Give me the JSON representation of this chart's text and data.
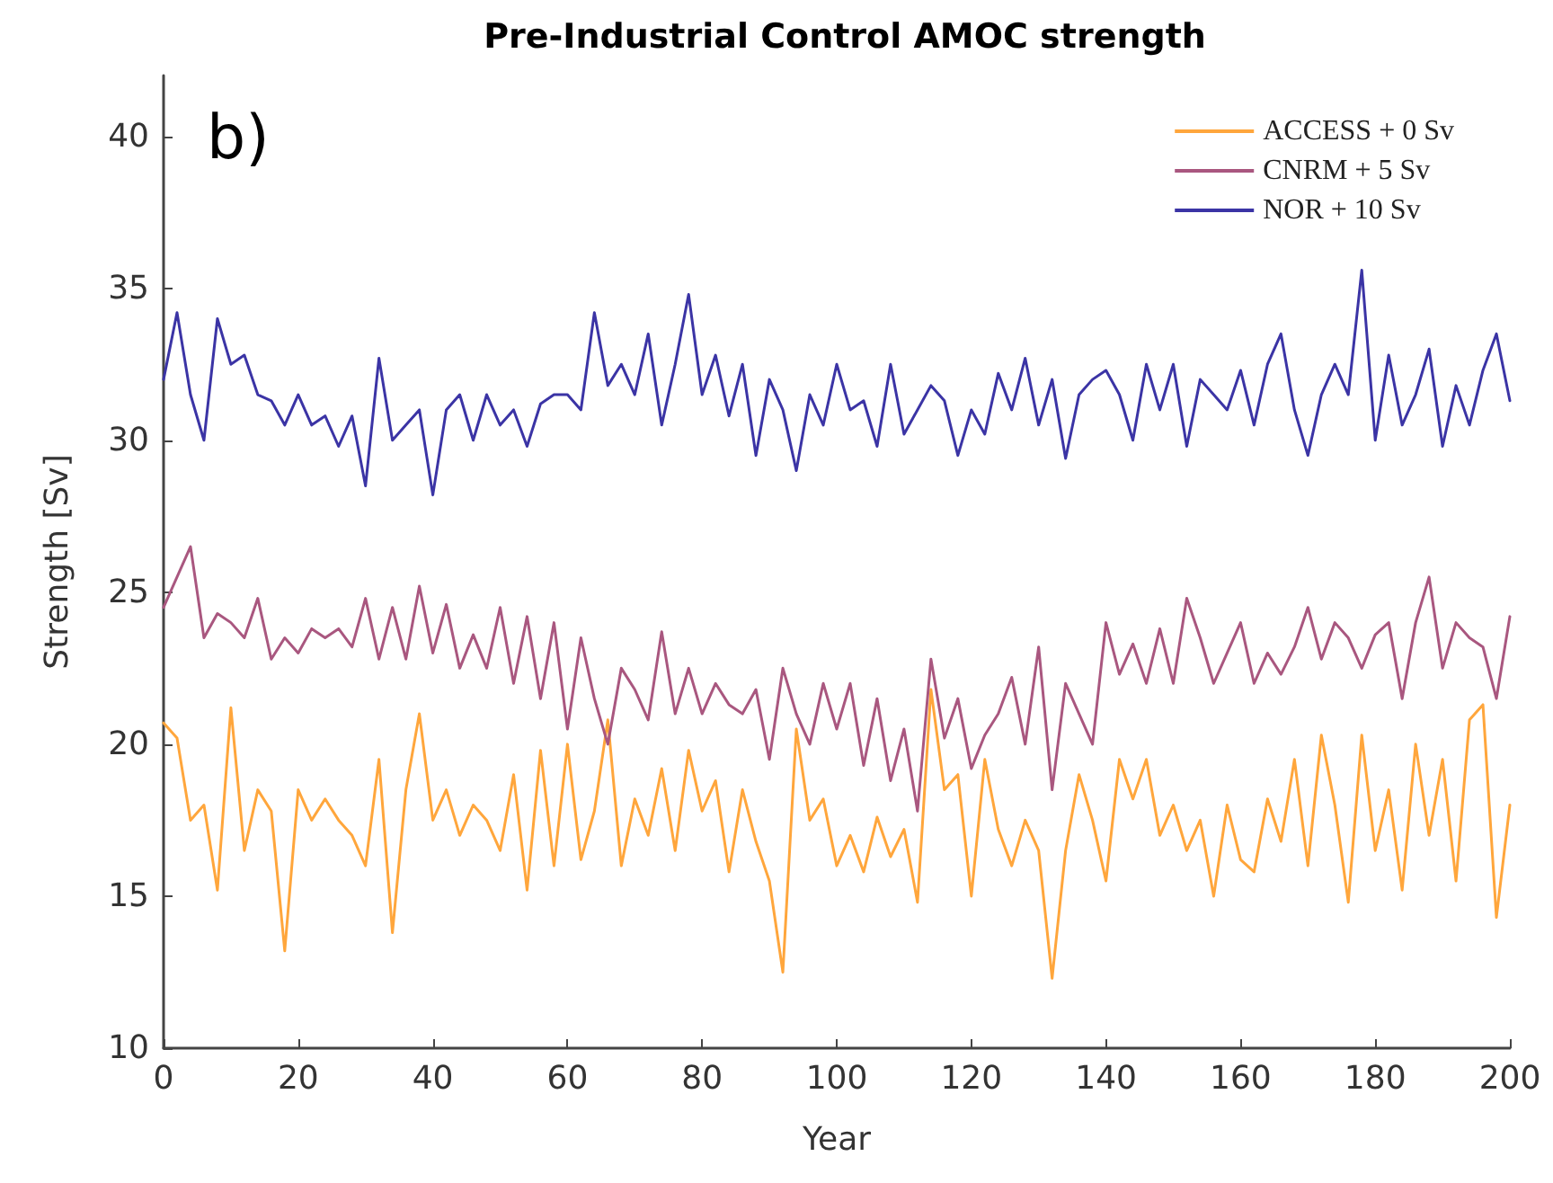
{
  "chart_data": {
    "type": "line",
    "title": "Pre-Industrial Control AMOC strength",
    "xlabel": "Year",
    "ylabel": "Strength [Sv]",
    "annotations": [
      "b)"
    ],
    "x": [
      0,
      2,
      4,
      6,
      8,
      10,
      12,
      14,
      16,
      18,
      20,
      22,
      24,
      26,
      28,
      30,
      32,
      34,
      36,
      38,
      40,
      42,
      44,
      46,
      48,
      50,
      52,
      54,
      56,
      58,
      60,
      62,
      64,
      66,
      68,
      70,
      72,
      74,
      76,
      78,
      80,
      82,
      84,
      86,
      88,
      90,
      92,
      94,
      96,
      98,
      100,
      102,
      104,
      106,
      108,
      110,
      112,
      114,
      116,
      118,
      120,
      122,
      124,
      126,
      128,
      130,
      132,
      134,
      136,
      138,
      140,
      142,
      144,
      146,
      148,
      150,
      152,
      154,
      156,
      158,
      160,
      162,
      164,
      166,
      168,
      170,
      172,
      174,
      176,
      178,
      180,
      182,
      184,
      186,
      188,
      190,
      192,
      194,
      196,
      198,
      200
    ],
    "series": [
      {
        "name": "ACCESS + 0 Sv",
        "color": "#ffa63c",
        "values": [
          20.7,
          20.2,
          17.5,
          18,
          15.2,
          21.2,
          16.5,
          18.5,
          17.8,
          13.2,
          18.5,
          17.5,
          18.2,
          17.5,
          17,
          16,
          19.5,
          13.8,
          18.5,
          21,
          17.5,
          18.5,
          17,
          18,
          17.5,
          16.5,
          19,
          15.2,
          19.8,
          16,
          20,
          16.2,
          17.8,
          20.8,
          16,
          18.2,
          17,
          19.2,
          16.5,
          19.8,
          17.8,
          18.8,
          15.8,
          18.5,
          16.8,
          15.5,
          12.5,
          20.5,
          17.5,
          18.2,
          16,
          17,
          15.8,
          17.6,
          16.3,
          17.2,
          14.8,
          21.8,
          18.5,
          19,
          15,
          19.5,
          17.2,
          16,
          17.5,
          16.5,
          12.3,
          16.5,
          19,
          17.5,
          15.5,
          19.5,
          18.2,
          19.5,
          17,
          18,
          16.5,
          17.5,
          15,
          18,
          16.2,
          15.8,
          18.2,
          16.8,
          19.5,
          16,
          20.3,
          18,
          14.8,
          20.3,
          16.5,
          18.5,
          15.2,
          20,
          17,
          19.5,
          15.5,
          20.8,
          21.3,
          14.3,
          18
        ]
      },
      {
        "name": "CNRM + 5 Sv",
        "color": "#a9577f",
        "values": [
          24.5,
          25.5,
          26.5,
          23.5,
          24.3,
          24,
          23.5,
          24.8,
          22.8,
          23.5,
          23,
          23.8,
          23.5,
          23.8,
          23.2,
          24.8,
          22.8,
          24.5,
          22.8,
          25.2,
          23,
          24.6,
          22.5,
          23.6,
          22.5,
          24.5,
          22,
          24.2,
          21.5,
          24,
          20.5,
          23.5,
          21.5,
          20,
          22.5,
          21.8,
          20.8,
          23.7,
          21,
          22.5,
          21,
          22,
          21.3,
          21,
          21.8,
          19.5,
          22.5,
          21,
          20,
          22,
          20.5,
          22,
          19.3,
          21.5,
          18.8,
          20.5,
          17.8,
          22.8,
          20.2,
          21.5,
          19.2,
          20.3,
          21,
          22.2,
          20,
          23.2,
          18.5,
          22,
          21,
          20,
          24,
          22.3,
          23.3,
          22,
          23.8,
          22,
          24.8,
          23.5,
          22,
          23,
          24,
          22,
          23,
          22.3,
          23.2,
          24.5,
          22.8,
          24,
          23.5,
          22.5,
          23.6,
          24,
          21.5,
          24,
          25.5,
          22.5,
          24,
          23.5,
          23.2,
          21.5,
          24.2
        ]
      },
      {
        "name": "NOR + 10 Sv",
        "color": "#3b34a5",
        "values": [
          32,
          34.2,
          31.5,
          30,
          34,
          32.5,
          32.8,
          31.5,
          31.3,
          30.5,
          31.5,
          30.5,
          30.8,
          29.8,
          30.8,
          28.5,
          32.7,
          30,
          30.5,
          31,
          28.2,
          31,
          31.5,
          30,
          31.5,
          30.5,
          31,
          29.8,
          31.2,
          31.5,
          31.5,
          31,
          34.2,
          31.8,
          32.5,
          31.5,
          33.5,
          30.5,
          32.5,
          34.8,
          31.5,
          32.8,
          30.8,
          32.5,
          29.5,
          32,
          31,
          29,
          31.5,
          30.5,
          32.5,
          31,
          31.3,
          29.8,
          32.5,
          30.2,
          31,
          31.8,
          31.3,
          29.5,
          31,
          30.2,
          32.2,
          31,
          32.7,
          30.5,
          32,
          29.4,
          31.5,
          32,
          32.3,
          31.5,
          30,
          32.5,
          31,
          32.5,
          29.8,
          32,
          31.5,
          31,
          32.3,
          30.5,
          32.5,
          33.5,
          31,
          29.5,
          31.5,
          32.5,
          31.5,
          35.6,
          30,
          32.8,
          30.5,
          31.5,
          33,
          29.8,
          31.8,
          30.5,
          32.3,
          33.5,
          31.3
        ]
      }
    ],
    "xlim": [
      0,
      200
    ],
    "xticks": [
      0,
      20,
      40,
      60,
      80,
      100,
      120,
      140,
      160,
      180,
      200
    ],
    "ylim": [
      10,
      42
    ],
    "yticks": [
      10,
      15,
      20,
      25,
      30,
      35,
      40
    ],
    "grid": false,
    "legend": "top right",
    "marker": "none",
    "line_style": "solid"
  }
}
